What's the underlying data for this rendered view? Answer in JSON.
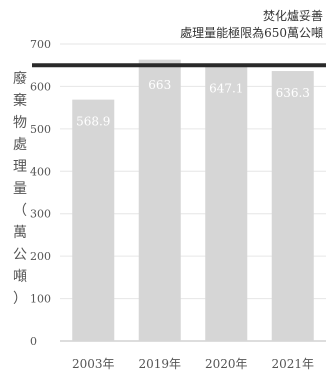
{
  "chart_data": {
    "type": "bar",
    "categories": [
      "2003年",
      "2019年",
      "2020年",
      "2021年"
    ],
    "values": [
      568.9,
      663,
      647.1,
      636.3
    ],
    "ylabel": "廢棄物處理量（萬公噸）",
    "ylim": [
      0,
      700
    ],
    "yticks": [
      0,
      100,
      200,
      300,
      400,
      500,
      600,
      700
    ],
    "value_labels": [
      "568.9",
      "663",
      "647.1",
      "636.3"
    ],
    "annotation": {
      "line1": "焚化爐妥善",
      "line2": "處理量能極限為650萬公噸",
      "value": 650
    },
    "grid": true,
    "colors": {
      "bar": "#d6d6d6",
      "limit_line": "#2a2a2a",
      "grid": "#e6e6e6",
      "text": "#555555"
    }
  }
}
